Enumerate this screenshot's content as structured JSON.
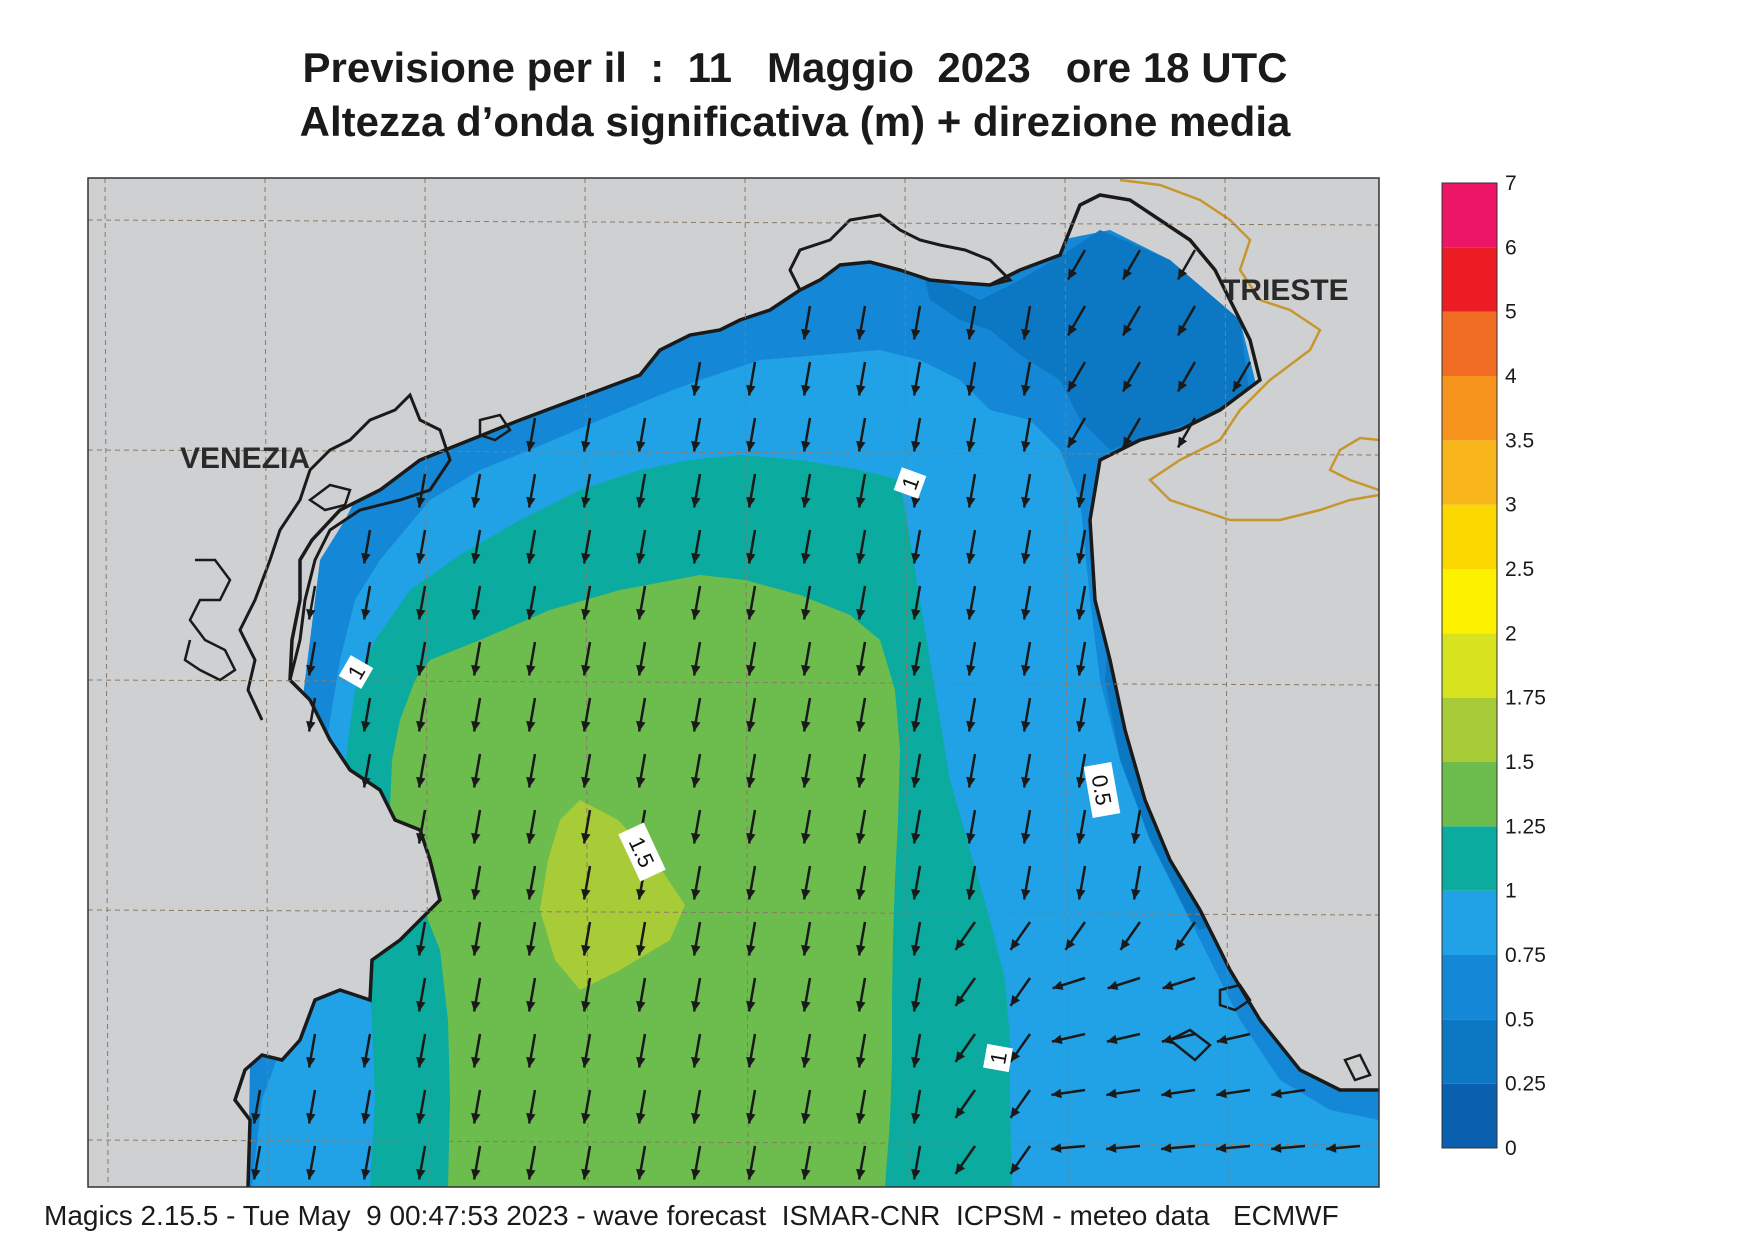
{
  "title": {
    "line1": "Previsione per il  :  11   Maggio  2023   ore 18 UTC",
    "line2": "Altezza d’onda significativa (m) + direzione media"
  },
  "cities": [
    "VENEZIA",
    "TRIESTE"
  ],
  "contour_labels": [
    "1",
    "1",
    "1",
    "1.5",
    "0.5"
  ],
  "colorbar": {
    "levels": [
      "0",
      "0.25",
      "0.5",
      "0.75",
      "1",
      "1.25",
      "1.5",
      "1.75",
      "2",
      "2.5",
      "3",
      "3.5",
      "4",
      "5",
      "6",
      "7"
    ],
    "colors": [
      "#0a5fae",
      "#0c78c4",
      "#1488d6",
      "#22a2e6",
      "#0bab9f",
      "#6cbd4d",
      "#a8cc38",
      "#d7e31e",
      "#fdf100",
      "#fdd800",
      "#f9b61a",
      "#f7941e",
      "#f26d24",
      "#ec1c24",
      "#ec1566"
    ]
  },
  "palette": {
    "land": "#cfd0d2",
    "coast": "#1a1a1a",
    "border": "#c8962e",
    "arrow": "#1a1a1a"
  },
  "footer": "Magics 2.15.5 - Tue May  9 00:47:53 2023 - wave forecast  ISMAR-CNR  ICPSM - meteo data   ECMWF"
}
